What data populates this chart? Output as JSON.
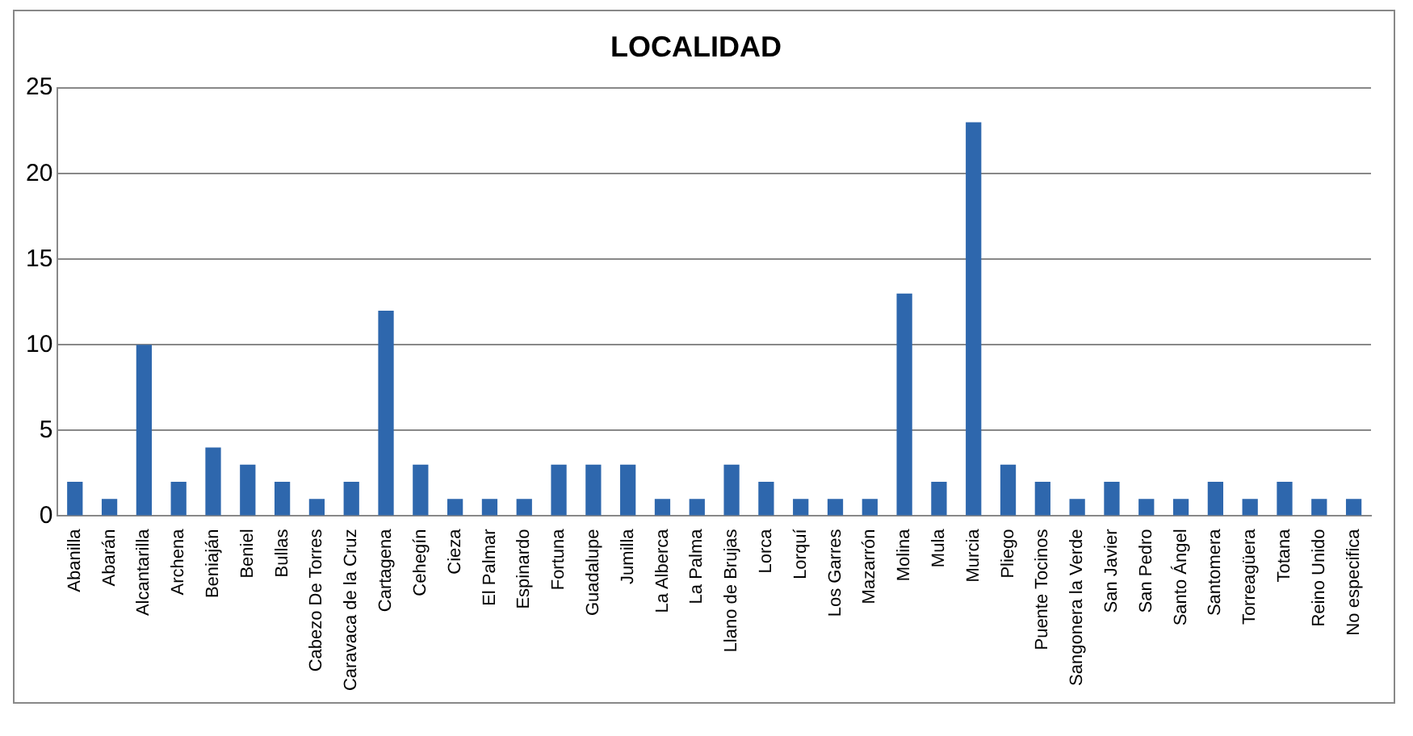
{
  "chart_data": {
    "type": "bar",
    "title": "LOCALIDAD",
    "categories": [
      "Abanilla",
      "Abarán",
      "Alcantarilla",
      "Archena",
      "Beniaján",
      "Beniel",
      "Bullas",
      "Cabezo De Torres",
      "Caravaca de la Cruz",
      "Cartagena",
      "Cehegín",
      "Cieza",
      "El Palmar",
      "Espinardo",
      "Fortuna",
      "Guadalupe",
      "Jumilla",
      "La Alberca",
      "La Palma",
      "Llano de Brujas",
      "Lorca",
      "Lorquí",
      "Los Garres",
      "Mazarrón",
      "Molina",
      "Mula",
      "Murcia",
      "Pliego",
      "Puente Tocinos",
      "Sangonera la Verde",
      "San Javier",
      "San Pedro",
      "Santo Ángel",
      "Santomera",
      "Torreagüera",
      "Totana",
      "Reino Unido",
      "No especifica"
    ],
    "values": [
      2,
      1,
      10,
      2,
      4,
      3,
      2,
      1,
      2,
      12,
      3,
      1,
      1,
      1,
      3,
      3,
      3,
      1,
      1,
      3,
      2,
      1,
      1,
      1,
      13,
      2,
      23,
      3,
      2,
      1,
      2,
      1,
      1,
      2,
      1,
      2,
      1,
      1
    ],
    "color": "#2e67ad",
    "ylim": [
      0,
      25
    ],
    "yticks": [
      0,
      5,
      10,
      15,
      20,
      25
    ],
    "grid": "y",
    "legend": false
  }
}
